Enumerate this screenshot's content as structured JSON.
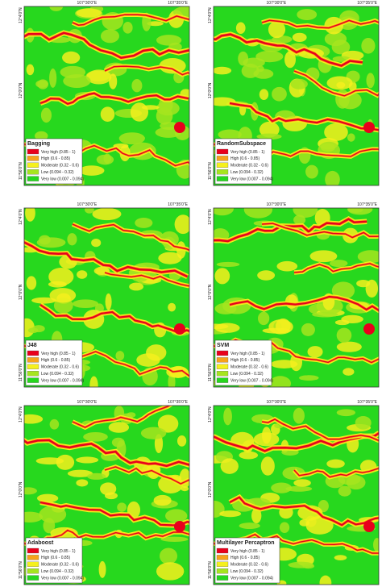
{
  "coordinates": {
    "x": [
      "107°30'0\"E",
      "107°35'0\"E"
    ],
    "y": [
      "12°4'0\"N",
      "12°0'0\"N",
      "11°56'0\"N"
    ]
  },
  "legend_classes": [
    {
      "label": "Very high (0.85 - 1)",
      "color": "#e8001c"
    },
    {
      "label": "High (0.6 - 0.85)",
      "color": "#f7a21b"
    },
    {
      "label": "Moderate (0.32 - 0.6)",
      "color": "#f5f01d"
    },
    {
      "label": "Low (0.094 - 0.32)",
      "color": "#a6e51f"
    },
    {
      "label": "Very low (0.007 - 0.094)",
      "color": "#27d81e"
    }
  ],
  "panels": [
    {
      "title": "Bagging"
    },
    {
      "title": "RandomSubspace"
    },
    {
      "title": "J48"
    },
    {
      "title": "SVM"
    },
    {
      "title": "Adaboost"
    },
    {
      "title": "Multilayer Percaptron"
    }
  ]
}
